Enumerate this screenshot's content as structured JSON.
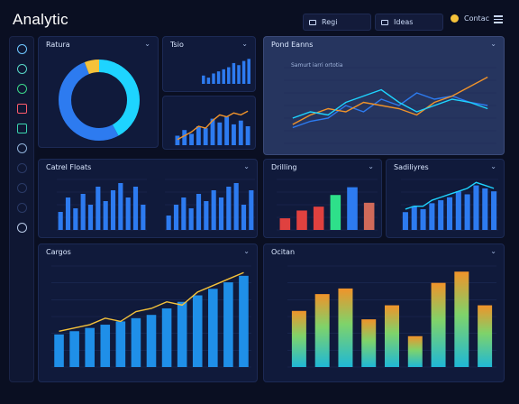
{
  "app": {
    "title": "Analytic"
  },
  "header": {
    "buttons": [
      {
        "label": "Regi"
      },
      {
        "label": "Ideas"
      }
    ],
    "profile": "Contac"
  },
  "panels": {
    "donut": {
      "title": "Ratura",
      "chevron": "⌄"
    },
    "mini1": {
      "title": "Tsio",
      "chevron": "⌄"
    },
    "big": {
      "title": "Pond Eanns",
      "chevron": "⌄",
      "legend": "Samurt iarri ortotia"
    },
    "control": {
      "title": "Catrel Floats",
      "chevron": "⌄"
    },
    "daily": {
      "title": "Drilling",
      "chevron": "⌄"
    },
    "sadi": {
      "title": "Sadiliyres",
      "chevron": "⌄"
    },
    "cargos": {
      "title": "Cargos",
      "chevron": "⌄"
    },
    "ocean": {
      "title": "Ocitan",
      "chevron": "⌄"
    }
  },
  "colors": {
    "cyan": "#1ed4ff",
    "blue": "#2d7bf0",
    "yellow": "#f5c23a",
    "orange": "#f0932a",
    "red": "#e0413f",
    "green": "#2ee08a",
    "teal": "#1fb8d6"
  },
  "chart_data": [
    {
      "id": "donut",
      "type": "pie",
      "series": [
        {
          "values": [
            42,
            52,
            6
          ]
        }
      ]
    },
    {
      "id": "mini-bars",
      "type": "bar",
      "values": [
        8,
        6,
        10,
        12,
        14,
        16,
        20,
        18,
        22,
        24
      ]
    },
    {
      "id": "mini-combo",
      "type": "line",
      "bars": [
        5,
        8,
        6,
        10,
        9,
        14,
        12,
        15,
        11,
        13,
        10
      ],
      "line": [
        3,
        5,
        7,
        10,
        9,
        13,
        16,
        15,
        17,
        16,
        18
      ]
    },
    {
      "id": "big-lines",
      "type": "line",
      "series": [
        {
          "color": "#2d7bf0",
          "values": [
            5,
            7,
            8,
            12,
            10,
            14,
            12,
            16,
            14,
            15,
            13,
            12
          ]
        },
        {
          "color": "#f0932a",
          "values": [
            6,
            9,
            11,
            10,
            13,
            12,
            11,
            9,
            13,
            15,
            18,
            21
          ]
        },
        {
          "color": "#1ed4ff",
          "values": [
            8,
            10,
            9,
            13,
            15,
            17,
            13,
            10,
            12,
            14,
            13,
            11
          ]
        }
      ]
    },
    {
      "id": "control-bars-a",
      "type": "bar",
      "values": [
        5,
        9,
        6,
        10,
        7,
        12,
        8,
        11,
        13,
        9,
        12,
        7
      ]
    },
    {
      "id": "control-bars-b",
      "type": "bar",
      "values": [
        4,
        7,
        9,
        6,
        10,
        8,
        11,
        9,
        12,
        13,
        7,
        11
      ]
    },
    {
      "id": "daily-bars",
      "type": "bar",
      "values": [
        3,
        5,
        6,
        9,
        11,
        7
      ],
      "colors": [
        "#e0413f",
        "#e0413f",
        "#e0413f",
        "#2ee08a",
        "#2d7bf0",
        "#d06a5a"
      ]
    },
    {
      "id": "sadi-bars",
      "type": "bar",
      "values": [
        6,
        8,
        7,
        9,
        10,
        11,
        13,
        12,
        15,
        14,
        13
      ],
      "line": [
        7,
        8,
        8,
        10,
        11,
        12,
        13,
        14,
        16,
        15,
        14
      ]
    },
    {
      "id": "cargos",
      "type": "bar",
      "values": [
        10,
        11,
        12,
        13,
        14,
        15,
        16,
        18,
        20,
        22,
        24,
        26,
        28
      ],
      "line": [
        11,
        12,
        13,
        15,
        14,
        17,
        18,
        20,
        19,
        23,
        25,
        27,
        29
      ]
    },
    {
      "id": "ocean",
      "type": "bar",
      "values": [
        20,
        26,
        28,
        17,
        22,
        11,
        30,
        34,
        22
      ]
    }
  ]
}
